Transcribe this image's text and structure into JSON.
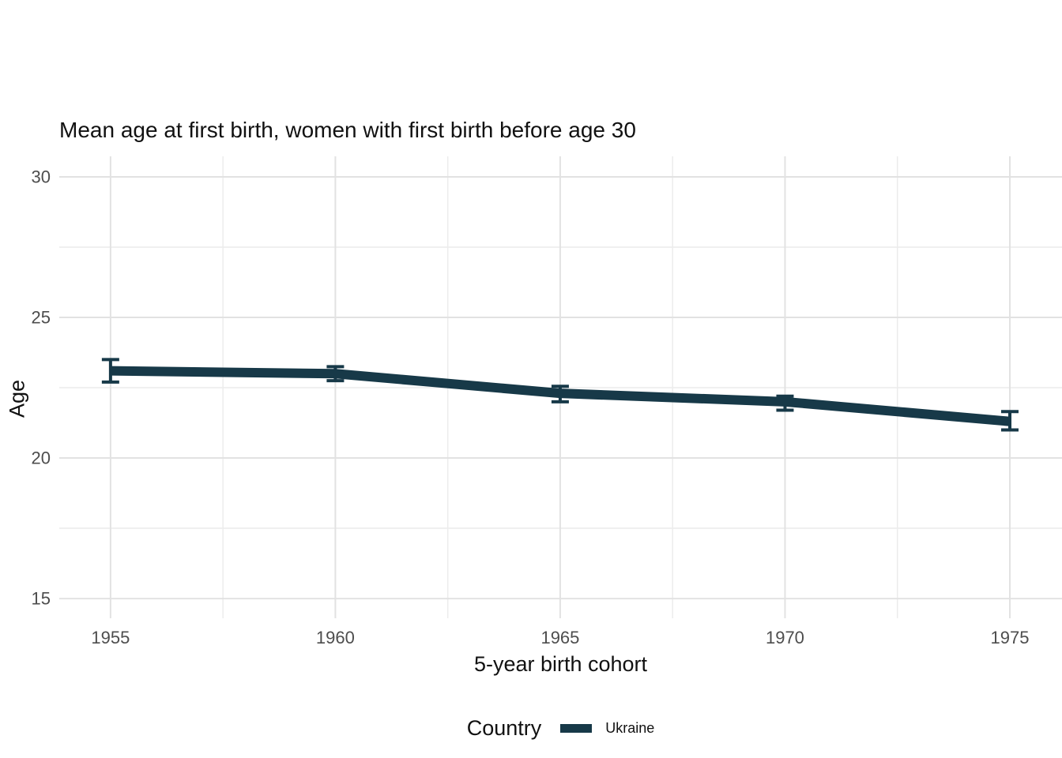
{
  "title": "Mean age at first birth, women with first birth before age 30",
  "chart_data": {
    "type": "line",
    "title": "Mean age at first birth, women with first birth before age 30",
    "xlabel": "5-year birth cohort",
    "ylabel": "Age",
    "x": [
      1955,
      1960,
      1965,
      1970,
      1975
    ],
    "series": [
      {
        "name": "Ukraine",
        "values": [
          23.1,
          23.0,
          22.3,
          22.0,
          21.3
        ],
        "ci_low": [
          22.7,
          22.75,
          22.0,
          21.7,
          21.0
        ],
        "ci_high": [
          23.5,
          23.25,
          22.55,
          22.2,
          21.65
        ]
      }
    ],
    "x_ticks": [
      1955,
      1960,
      1965,
      1970,
      1975
    ],
    "x_minor": [
      1957.5,
      1962.5,
      1967.5,
      1972.5
    ],
    "y_ticks": [
      15,
      20,
      25,
      30
    ],
    "y_minor": [
      17.5,
      22.5,
      27.5
    ],
    "xlim": [
      1953.86,
      1976.16
    ],
    "ylim": [
      14.3,
      30.73
    ],
    "grid": true,
    "legend": {
      "title": "Country",
      "position": "bottom",
      "entries": [
        "Ukraine"
      ]
    }
  },
  "colors": {
    "line": "#173948",
    "grid_major": "#E2E2E2",
    "grid_minor": "#ECECEC",
    "tick_label": "#4D4D4D",
    "text": "#111111",
    "background": "#FFFFFF"
  }
}
